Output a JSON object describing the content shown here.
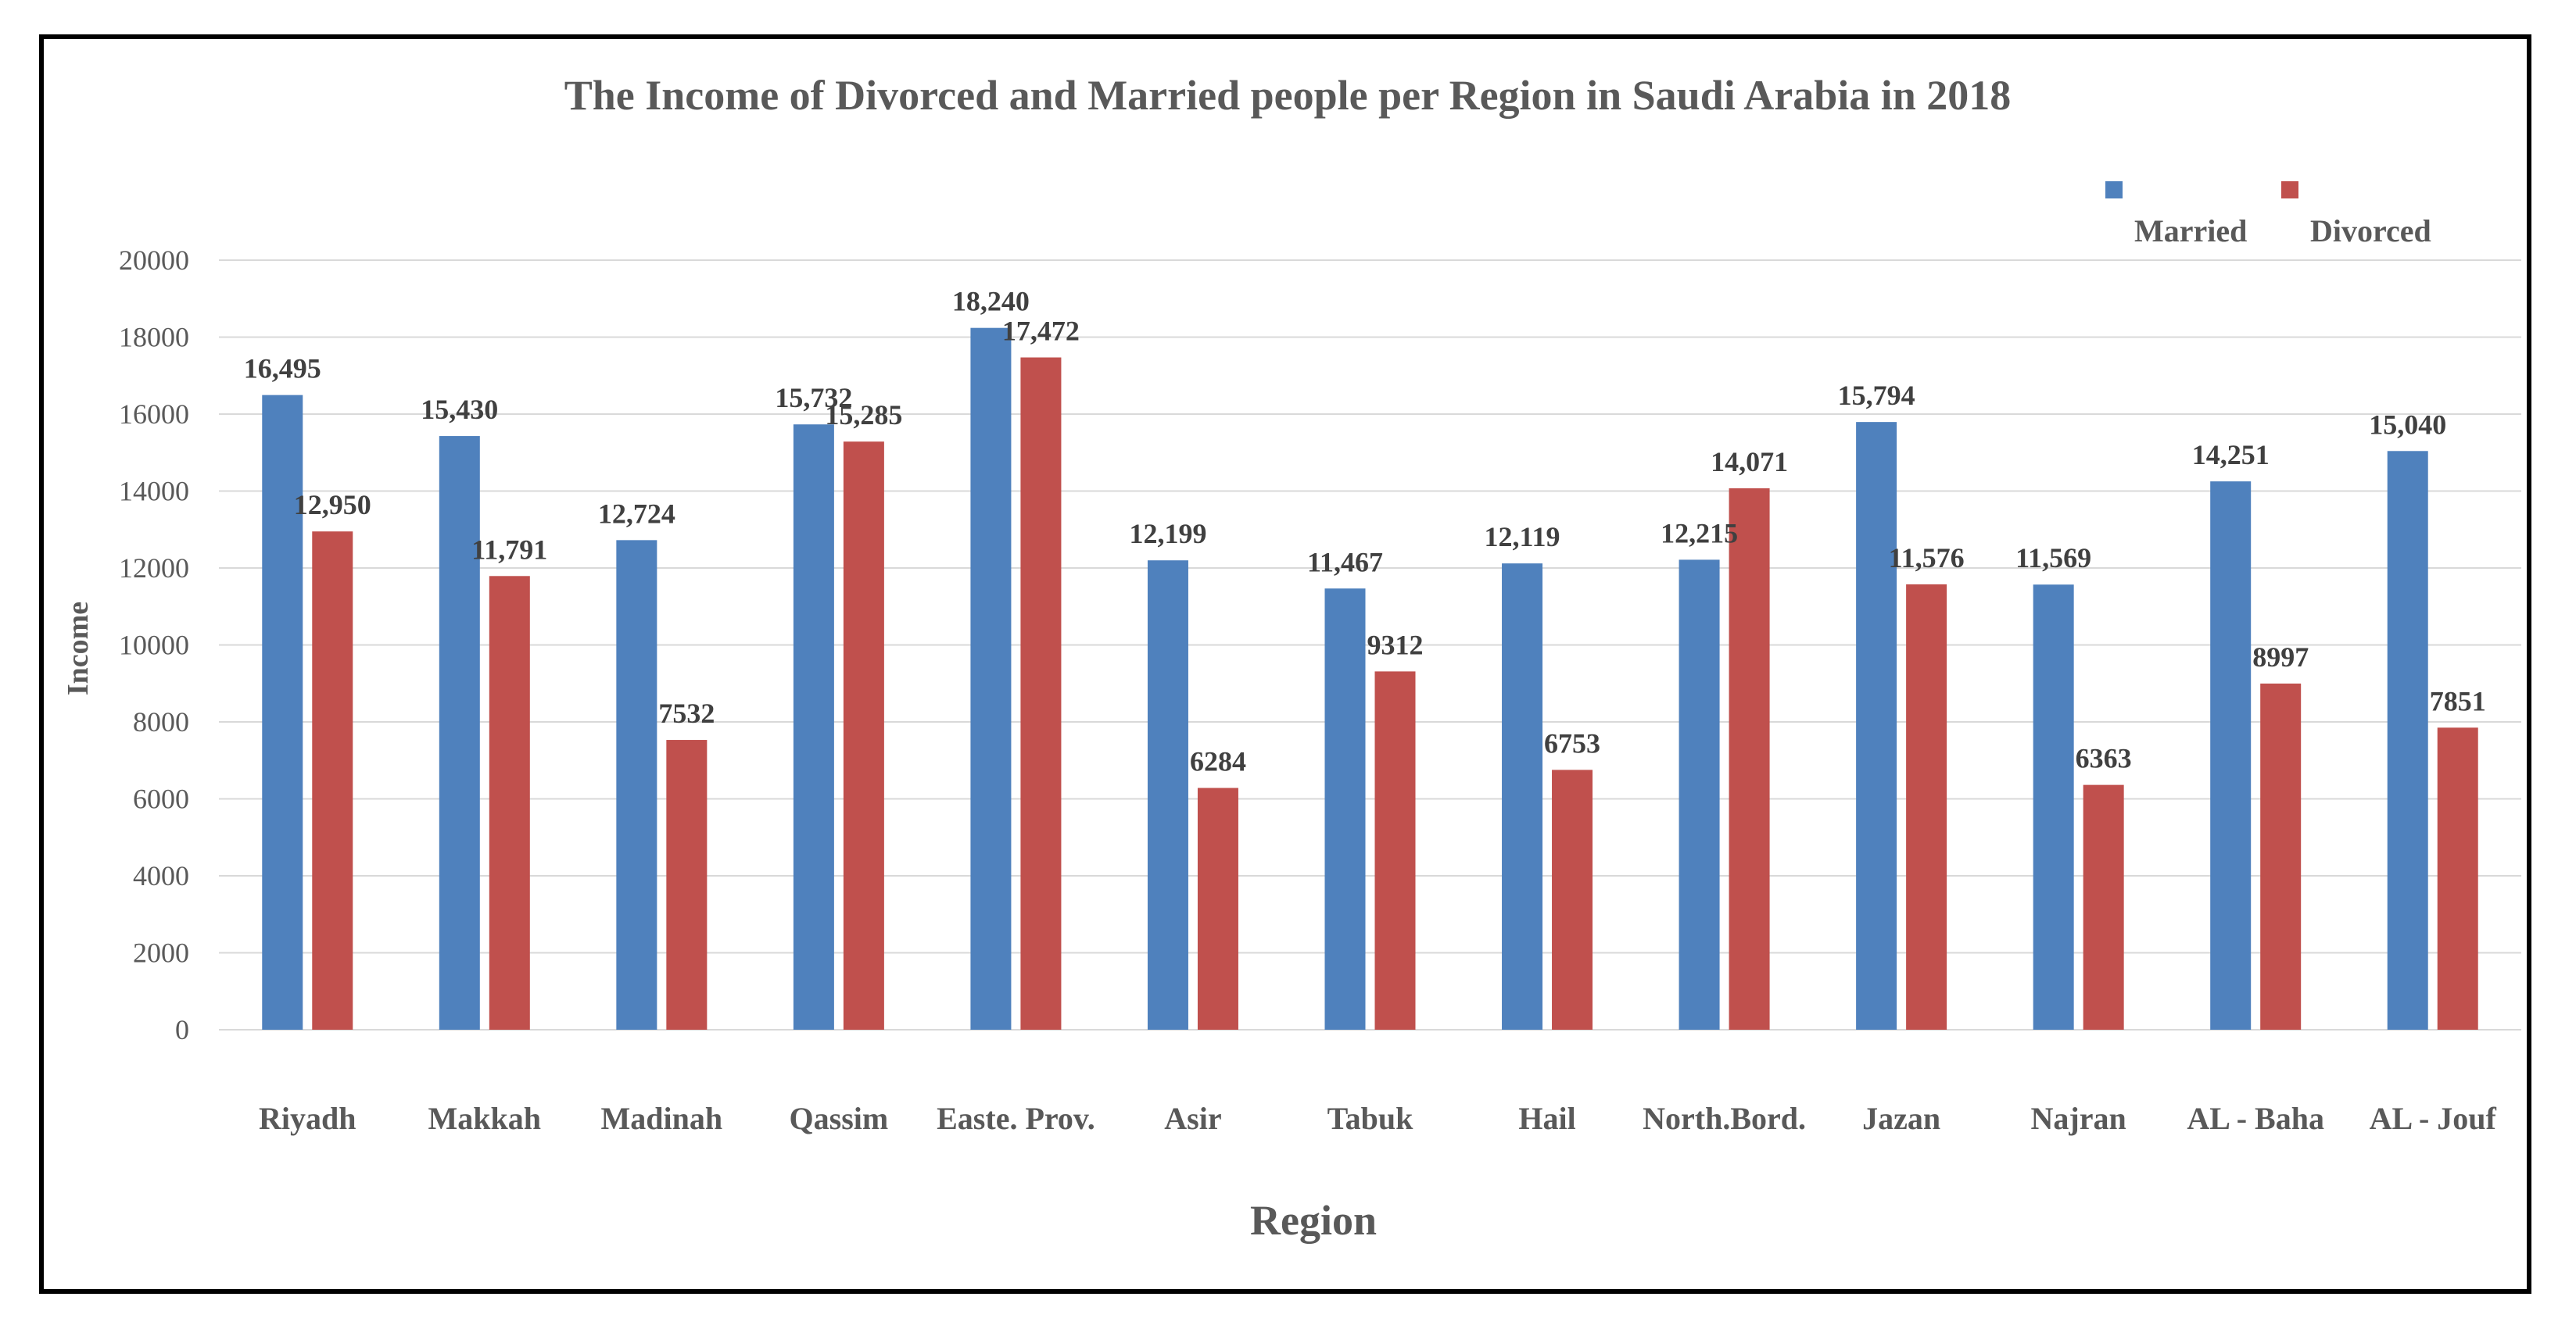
{
  "chart_data": {
    "type": "bar",
    "title": "The Income of Divorced and Married people per Region in Saudi Arabia in 2018",
    "xlabel": "Region",
    "ylabel": "Income",
    "ylim": [
      0,
      20000
    ],
    "yticks": [
      0,
      2000,
      4000,
      6000,
      8000,
      10000,
      12000,
      14000,
      16000,
      18000,
      20000
    ],
    "ytick_labels": [
      "0",
      "2000",
      "4000",
      "6000",
      "8000",
      "10000",
      "12000",
      "14000",
      "16000",
      "18000",
      "20000"
    ],
    "grid": true,
    "legend_position": "top-right",
    "categories": [
      "Riyadh",
      "Makkah",
      "Madinah",
      "Qassim",
      "Easte. Prov.",
      "Asir",
      "Tabuk",
      "Hail",
      "North.Bord.",
      "Jazan",
      "Najran",
      "AL - Baha",
      "AL - Jouf"
    ],
    "series": [
      {
        "name": "Married",
        "color": "#4f81bd",
        "values": [
          16495,
          15430,
          12724,
          15732,
          18240,
          12199,
          11467,
          12119,
          12215,
          15794,
          11569,
          14251,
          15040
        ],
        "labels": [
          "16,495",
          "15,430",
          "12,724",
          "15,732",
          "18,240",
          "12,199",
          "11,467",
          "12,119",
          "12,215",
          "15,794",
          "11,569",
          "14,251",
          "15,040"
        ]
      },
      {
        "name": "Divorced",
        "color": "#c0504d",
        "values": [
          12950,
          11791,
          7532,
          15285,
          17472,
          6284,
          9312,
          6753,
          14071,
          11576,
          6363,
          8997,
          7851
        ],
        "labels": [
          "12,950",
          "11,791",
          "7532",
          "15,285",
          "17,472",
          "6284",
          "9312",
          "6753",
          "14,071",
          "11,576",
          "6363",
          "8997",
          "7851"
        ]
      }
    ]
  }
}
